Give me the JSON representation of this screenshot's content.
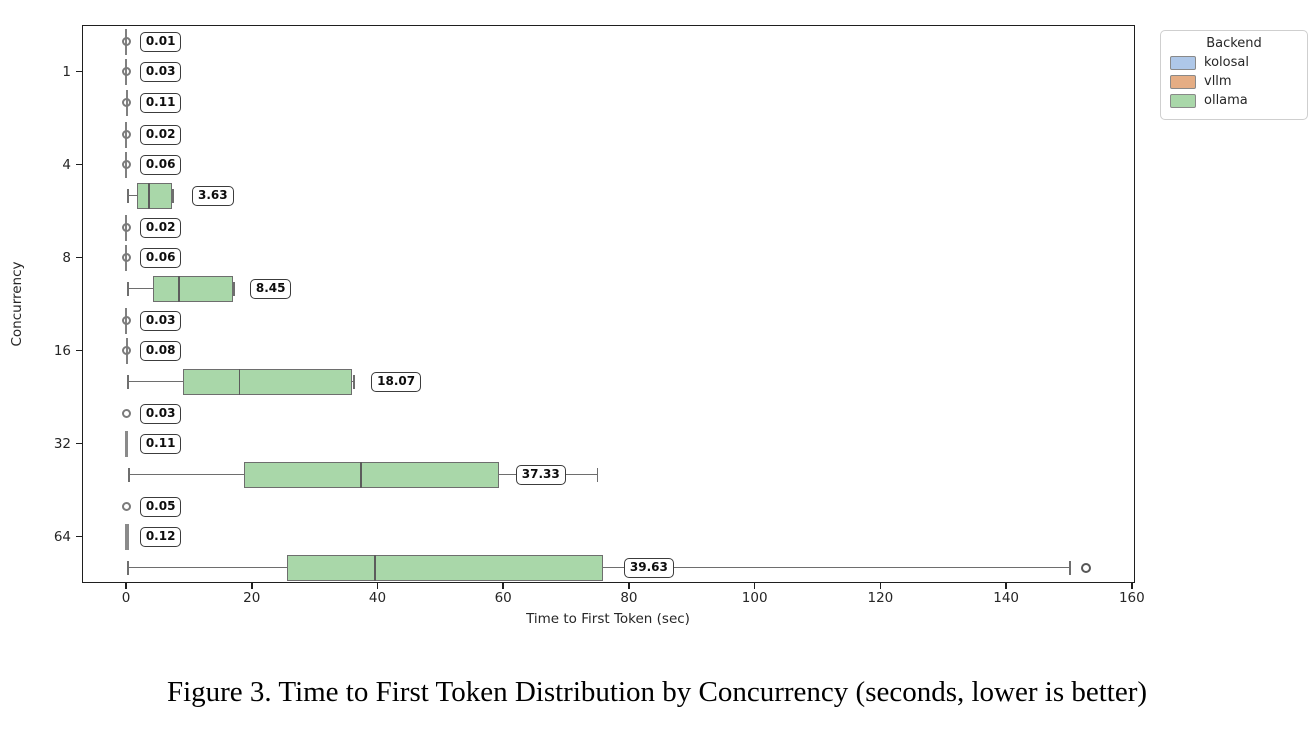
{
  "caption": "Figure 3. Time to First Token Distribution by Concurrency (seconds, lower is better)",
  "legend": {
    "title": "Backend",
    "entries": [
      {
        "label": "kolosal",
        "color": "#aec7e8"
      },
      {
        "label": "vllm",
        "color": "#e5ad84"
      },
      {
        "label": "ollama",
        "color": "#a9d7a9"
      }
    ]
  },
  "chart_data": {
    "type": "boxplot",
    "orientation": "horizontal",
    "title": "",
    "xlabel": "Time to First Token (sec)",
    "ylabel": "Concurrency",
    "xlim": [
      -7,
      160.5
    ],
    "xticks": [
      0,
      20,
      40,
      60,
      80,
      100,
      120,
      140,
      160
    ],
    "categories": [
      "1",
      "4",
      "8",
      "16",
      "32",
      "64"
    ],
    "backends": [
      "kolosal",
      "vllm",
      "ollama"
    ],
    "grid": false,
    "legend_position": "upper-right-outside",
    "groups": [
      {
        "concurrency": "1",
        "items": [
          {
            "backend": "kolosal",
            "shape": "collapsed",
            "x": 0.01,
            "line": true,
            "thick": false,
            "ring": true,
            "annotation": "0.01",
            "annotation_x": 2.2
          },
          {
            "backend": "vllm",
            "shape": "collapsed",
            "x": 0.03,
            "line": true,
            "thick": false,
            "ring": true,
            "annotation": "0.03",
            "annotation_x": 2.2
          },
          {
            "backend": "ollama",
            "shape": "collapsed",
            "x": 0.11,
            "line": true,
            "thick": false,
            "ring": true,
            "annotation": "0.11",
            "annotation_x": 2.2
          }
        ]
      },
      {
        "concurrency": "4",
        "items": [
          {
            "backend": "kolosal",
            "shape": "collapsed",
            "x": 0.02,
            "line": true,
            "thick": false,
            "ring": true,
            "annotation": "0.02",
            "annotation_x": 2.2
          },
          {
            "backend": "vllm",
            "shape": "collapsed",
            "x": 0.06,
            "line": true,
            "thick": false,
            "ring": true,
            "annotation": "0.06",
            "annotation_x": 2.2
          },
          {
            "backend": "ollama",
            "shape": "box",
            "whisker_low": 0.3,
            "q1": 1.7,
            "median": 3.63,
            "q3": 7.3,
            "whisker_high": 7.5,
            "outliers": [],
            "annotation": "3.63",
            "annotation_x": 10.5
          }
        ]
      },
      {
        "concurrency": "8",
        "items": [
          {
            "backend": "kolosal",
            "shape": "collapsed",
            "x": 0.02,
            "line": true,
            "thick": false,
            "ring": true,
            "annotation": "0.02",
            "annotation_x": 2.2
          },
          {
            "backend": "vllm",
            "shape": "collapsed",
            "x": 0.06,
            "line": true,
            "thick": false,
            "ring": true,
            "annotation": "0.06",
            "annotation_x": 2.2
          },
          {
            "backend": "ollama",
            "shape": "box",
            "whisker_low": 0.3,
            "q1": 4.3,
            "median": 8.45,
            "q3": 17.0,
            "whisker_high": 17.2,
            "outliers": [],
            "annotation": "8.45",
            "annotation_x": 19.7
          }
        ]
      },
      {
        "concurrency": "16",
        "items": [
          {
            "backend": "kolosal",
            "shape": "collapsed",
            "x": 0.03,
            "line": true,
            "thick": false,
            "ring": true,
            "annotation": "0.03",
            "annotation_x": 2.2
          },
          {
            "backend": "vllm",
            "shape": "collapsed",
            "x": 0.08,
            "line": true,
            "thick": false,
            "ring": true,
            "annotation": "0.08",
            "annotation_x": 2.2
          },
          {
            "backend": "ollama",
            "shape": "box",
            "whisker_low": 0.3,
            "q1": 9.0,
            "median": 18.07,
            "q3": 36.0,
            "whisker_high": 36.3,
            "outliers": [],
            "annotation": "18.07",
            "annotation_x": 39.0
          }
        ]
      },
      {
        "concurrency": "32",
        "items": [
          {
            "backend": "kolosal",
            "shape": "collapsed",
            "x": 0.03,
            "line": false,
            "thick": false,
            "ring": true,
            "annotation": "0.03",
            "annotation_x": 2.2
          },
          {
            "backend": "vllm",
            "shape": "collapsed",
            "x": 0.11,
            "line": true,
            "thick": true,
            "ring": false,
            "annotation": "0.11",
            "annotation_x": 2.2
          },
          {
            "backend": "ollama",
            "shape": "box",
            "whisker_low": 0.5,
            "q1": 18.7,
            "median": 37.33,
            "q3": 59.4,
            "whisker_high": 75.0,
            "outliers": [],
            "annotation": "37.33",
            "annotation_x": 62.0
          }
        ]
      },
      {
        "concurrency": "64",
        "items": [
          {
            "backend": "kolosal",
            "shape": "collapsed",
            "x": 0.05,
            "line": false,
            "thick": false,
            "ring": true,
            "annotation": "0.05",
            "annotation_x": 2.2
          },
          {
            "backend": "vllm",
            "shape": "collapsed",
            "x": 0.12,
            "line": true,
            "thick": true,
            "ring": false,
            "annotation": "0.12",
            "annotation_x": 2.2
          },
          {
            "backend": "ollama",
            "shape": "box",
            "whisker_low": 0.3,
            "q1": 25.6,
            "median": 39.63,
            "q3": 75.9,
            "whisker_high": 150.2,
            "outliers": [
              152.7
            ],
            "annotation": "39.63",
            "annotation_x": 79.2
          }
        ]
      }
    ]
  }
}
